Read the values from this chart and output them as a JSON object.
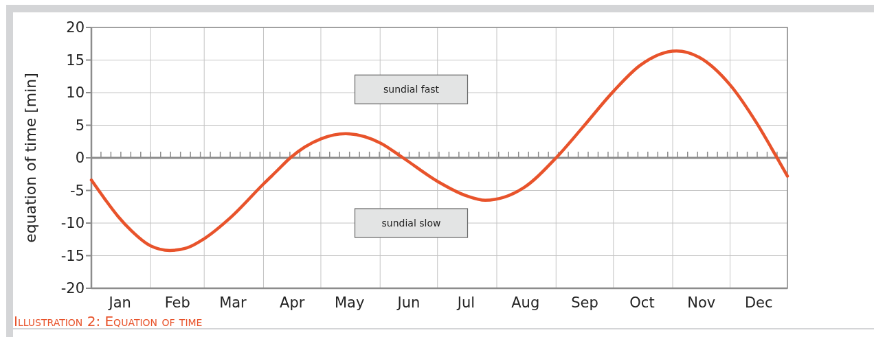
{
  "chart_data": {
    "type": "line",
    "title": "Illustration 2: Equation of time",
    "ylabel": "equation of time [min]",
    "annotations": [
      "sundial fast",
      "sundial slow"
    ],
    "x": [
      "--01-01",
      "--01-08",
      "--01-15",
      "--01-22",
      "--02-01",
      "--02-11",
      "--02-20",
      "--03-01",
      "--03-15",
      "--04-01",
      "--04-08",
      "--04-15",
      "--05-01",
      "--05-14",
      "--06-01",
      "--06-13",
      "--07-01",
      "--07-16",
      "--07-26",
      "--08-15",
      "--09-01",
      "--09-15",
      "--10-01",
      "--10-15",
      "--11-03",
      "--11-15",
      "--12-01",
      "--12-15",
      "--12-25",
      "--12-31"
    ],
    "series": [
      {
        "color": "#e8532b",
        "values": [
          -3.4,
          -6.3,
          -9.0,
          -11.2,
          -13.5,
          -14.2,
          -13.8,
          -12.4,
          -9.1,
          -4.0,
          -2.0,
          0.0,
          2.9,
          3.7,
          2.3,
          0.0,
          -3.6,
          -5.8,
          -6.5,
          -4.6,
          0.0,
          4.7,
          10.2,
          14.2,
          16.4,
          15.4,
          11.2,
          5.3,
          0.3,
          -2.8
        ]
      }
    ],
    "xlim": [
      "--01-01",
      "--12-31"
    ],
    "xticks": [
      {
        "value": "--01-01",
        "label": null
      },
      {
        "value": "--01-16",
        "label": "Jan"
      },
      {
        "value": "--02-01",
        "label": null
      },
      {
        "value": "--02-15",
        "label": "Feb"
      },
      {
        "value": "--03-01",
        "label": null
      },
      {
        "value": "--03-16",
        "label": "Mar"
      },
      {
        "value": "--04-01",
        "label": null
      },
      {
        "value": "--04-16",
        "label": "Apr"
      },
      {
        "value": "--05-01",
        "label": null
      },
      {
        "value": "--05-16",
        "label": "May"
      },
      {
        "value": "--06-01",
        "label": null
      },
      {
        "value": "--06-16",
        "label": "Jun"
      },
      {
        "value": "--07-01",
        "label": null
      },
      {
        "value": "--07-16",
        "label": "Jul"
      },
      {
        "value": "--08-01",
        "label": null
      },
      {
        "value": "--08-16",
        "label": "Aug"
      },
      {
        "value": "--09-01",
        "label": null
      },
      {
        "value": "--09-16",
        "label": "Sep"
      },
      {
        "value": "--10-01",
        "label": null
      },
      {
        "value": "--10-16",
        "label": "Oct"
      },
      {
        "value": "--11-01",
        "label": null
      },
      {
        "value": "--11-16",
        "label": "Nov"
      },
      {
        "value": "--12-01",
        "label": null
      },
      {
        "value": "--12-16",
        "label": "Dec"
      },
      {
        "value": "--12-31",
        "label": null
      }
    ],
    "ylim": [
      -20,
      20
    ],
    "yticks": [
      -20,
      -15,
      -10,
      -5,
      0,
      5,
      10,
      15,
      20
    ],
    "ref_lines": [
      {
        "axis": "y",
        "value": 0,
        "color": "#8c8c8c"
      }
    ],
    "grid": true,
    "marker": "none",
    "line_style": "solid"
  }
}
